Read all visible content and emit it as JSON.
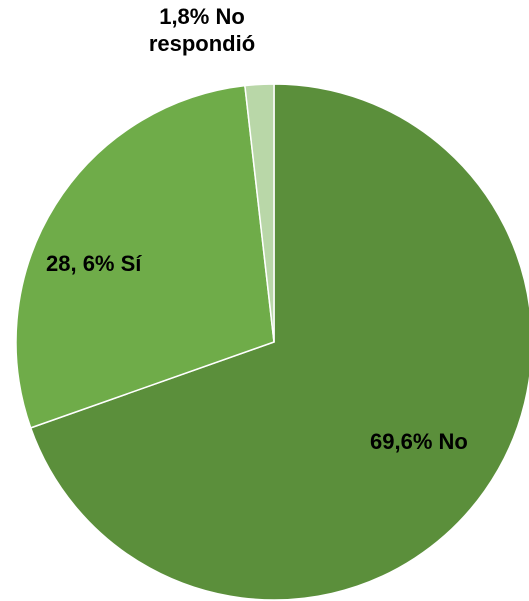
{
  "chart_data": {
    "type": "pie",
    "slices": [
      {
        "category": "No",
        "value": 69.6,
        "label": "69,6% No",
        "color": "#5b8f3b"
      },
      {
        "category": "Sí",
        "value": 28.6,
        "label": "28, 6% Sí",
        "color": "#6fac49"
      },
      {
        "category": "No respondió",
        "value": 1.8,
        "label_line1": "1,8% No",
        "label_line2": "respondió",
        "color": "#b9d7a8"
      }
    ],
    "start_angle_deg": 0,
    "direction": "clockwise",
    "slice_border_color": "#ffffff",
    "legend": "none"
  }
}
